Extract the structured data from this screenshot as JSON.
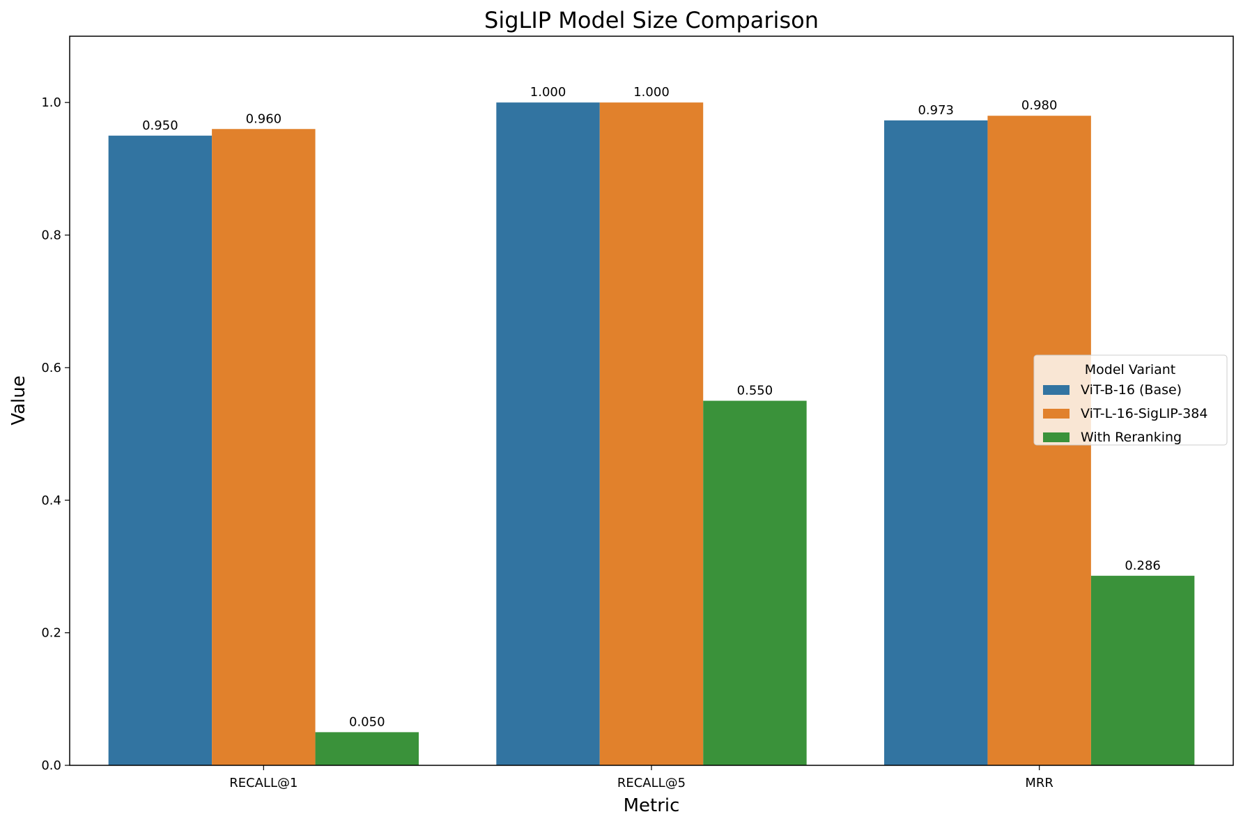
{
  "chart_data": {
    "type": "bar",
    "title": "SigLIP Model Size Comparison",
    "xlabel": "Metric",
    "ylabel": "Value",
    "categories": [
      "RECALL@1",
      "RECALL@5",
      "MRR"
    ],
    "series": [
      {
        "name": "ViT-B-16 (Base)",
        "color": "#3274a1",
        "values": [
          0.95,
          1.0,
          0.973
        ]
      },
      {
        "name": "ViT-L-16-SigLIP-384",
        "color": "#e1812c",
        "values": [
          0.96,
          1.0,
          0.98
        ]
      },
      {
        "name": "With Reranking",
        "color": "#3a923a",
        "values": [
          0.05,
          0.55,
          0.286
        ]
      }
    ],
    "data_labels": [
      [
        "0.950",
        "1.000",
        "0.973"
      ],
      [
        "0.960",
        "1.000",
        "0.980"
      ],
      [
        "0.050",
        "0.550",
        "0.286"
      ]
    ],
    "ylim": [
      0,
      1.1
    ],
    "yticks": [
      0.0,
      0.2,
      0.4,
      0.6,
      0.8,
      1.0
    ],
    "ytick_labels": [
      "0.0",
      "0.2",
      "0.4",
      "0.6",
      "0.8",
      "1.0"
    ],
    "grid": false,
    "legend": {
      "title": "Model Variant",
      "placement": "center-right"
    }
  }
}
